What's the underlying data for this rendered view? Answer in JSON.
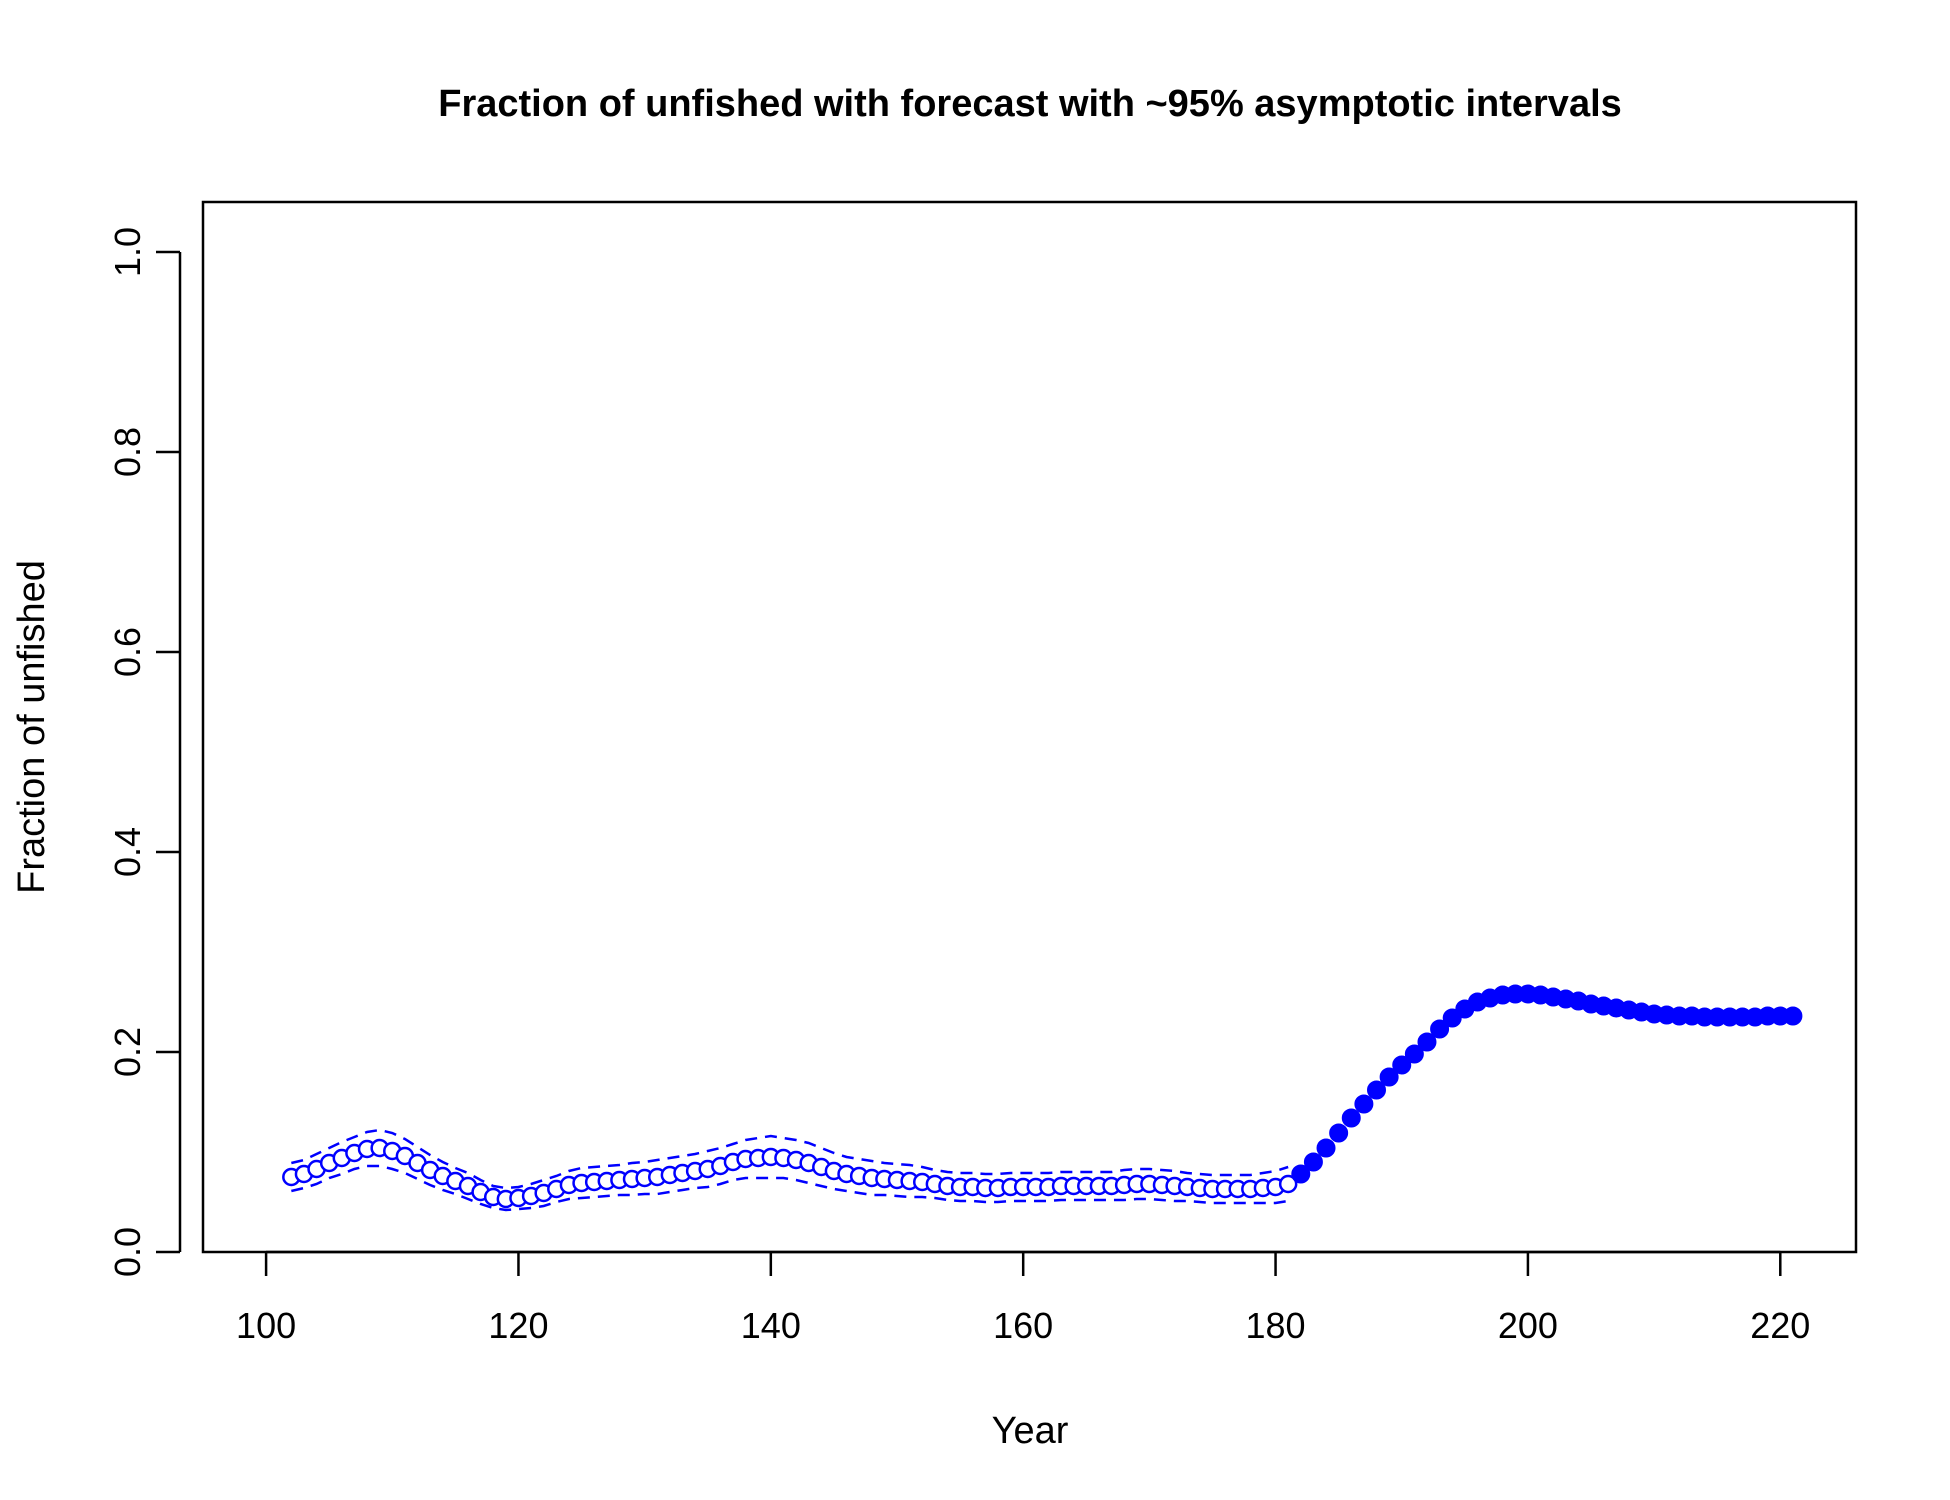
{
  "chart_data": {
    "type": "line",
    "title": "Fraction of unfished with forecast with ~95% asymptotic intervals",
    "xlabel": "Year",
    "ylabel": "Fraction of unfished",
    "xlim": [
      95,
      226
    ],
    "ylim": [
      0,
      1.05
    ],
    "x_ticks": [
      100,
      120,
      140,
      160,
      180,
      200,
      220
    ],
    "x_tick_labels": [
      "100",
      "120",
      "140",
      "160",
      "180",
      "200",
      "220"
    ],
    "y_ticks": [
      0,
      0.2,
      0.4,
      0.6,
      0.8,
      1.0
    ],
    "y_tick_labels": [
      "0.0",
      "0.2",
      "0.4",
      "0.6",
      "0.8",
      "1.0"
    ],
    "grid": false,
    "color": "#0000ff",
    "series": [
      {
        "marker": "open-circle",
        "x": [
          102,
          103,
          104,
          105,
          106,
          107,
          108,
          109,
          110,
          111,
          112,
          113,
          114,
          115,
          116,
          117,
          118,
          119,
          120,
          121,
          122,
          123,
          124,
          125,
          126,
          127,
          128,
          129,
          130,
          131,
          132,
          133,
          134,
          135,
          136,
          137,
          138,
          139,
          140,
          141,
          142,
          143,
          144,
          145,
          146,
          147,
          148,
          149,
          150,
          151,
          152,
          153,
          154,
          155,
          156,
          157,
          158,
          159,
          160,
          161,
          162,
          163,
          164,
          165,
          166,
          167,
          168,
          169,
          170,
          171,
          172,
          173,
          174,
          175,
          176,
          177,
          178,
          179,
          180,
          181
        ],
        "y": [
          0.075,
          0.078,
          0.083,
          0.089,
          0.094,
          0.099,
          0.103,
          0.104,
          0.101,
          0.096,
          0.089,
          0.082,
          0.076,
          0.071,
          0.066,
          0.06,
          0.055,
          0.053,
          0.054,
          0.056,
          0.059,
          0.063,
          0.067,
          0.069,
          0.07,
          0.071,
          0.072,
          0.073,
          0.074,
          0.075,
          0.077,
          0.079,
          0.081,
          0.083,
          0.086,
          0.09,
          0.093,
          0.094,
          0.095,
          0.094,
          0.092,
          0.089,
          0.085,
          0.081,
          0.078,
          0.076,
          0.074,
          0.073,
          0.072,
          0.071,
          0.07,
          0.068,
          0.066,
          0.065,
          0.065,
          0.064,
          0.064,
          0.065,
          0.065,
          0.065,
          0.065,
          0.066,
          0.066,
          0.066,
          0.066,
          0.066,
          0.067,
          0.068,
          0.068,
          0.067,
          0.066,
          0.065,
          0.064,
          0.063,
          0.063,
          0.063,
          0.063,
          0.064,
          0.065,
          0.068
        ]
      },
      {
        "marker": "dashed-line",
        "x": [
          102,
          103,
          104,
          105,
          106,
          107,
          108,
          109,
          110,
          111,
          112,
          113,
          114,
          115,
          116,
          117,
          118,
          119,
          120,
          121,
          122,
          123,
          124,
          125,
          126,
          127,
          128,
          129,
          130,
          131,
          132,
          133,
          134,
          135,
          136,
          137,
          138,
          139,
          140,
          141,
          142,
          143,
          144,
          145,
          146,
          147,
          148,
          149,
          150,
          151,
          152,
          153,
          154,
          155,
          156,
          157,
          158,
          159,
          160,
          161,
          162,
          163,
          164,
          165,
          166,
          167,
          168,
          169,
          170,
          171,
          172,
          173,
          174,
          175,
          176,
          177,
          178,
          179,
          180,
          181
        ],
        "y": [
          0.089,
          0.092,
          0.098,
          0.104,
          0.11,
          0.115,
          0.12,
          0.122,
          0.119,
          0.113,
          0.105,
          0.097,
          0.09,
          0.084,
          0.079,
          0.072,
          0.066,
          0.064,
          0.065,
          0.068,
          0.072,
          0.076,
          0.081,
          0.084,
          0.085,
          0.086,
          0.087,
          0.089,
          0.09,
          0.092,
          0.094,
          0.096,
          0.098,
          0.101,
          0.104,
          0.108,
          0.112,
          0.114,
          0.116,
          0.114,
          0.112,
          0.109,
          0.104,
          0.099,
          0.095,
          0.093,
          0.091,
          0.089,
          0.088,
          0.087,
          0.085,
          0.082,
          0.08,
          0.079,
          0.079,
          0.078,
          0.078,
          0.079,
          0.079,
          0.079,
          0.079,
          0.08,
          0.08,
          0.08,
          0.08,
          0.08,
          0.082,
          0.083,
          0.083,
          0.082,
          0.081,
          0.079,
          0.078,
          0.077,
          0.077,
          0.077,
          0.077,
          0.079,
          0.081,
          0.085
        ]
      },
      {
        "marker": "dashed-line",
        "x": [
          102,
          103,
          104,
          105,
          106,
          107,
          108,
          109,
          110,
          111,
          112,
          113,
          114,
          115,
          116,
          117,
          118,
          119,
          120,
          121,
          122,
          123,
          124,
          125,
          126,
          127,
          128,
          129,
          130,
          131,
          132,
          133,
          134,
          135,
          136,
          137,
          138,
          139,
          140,
          141,
          142,
          143,
          144,
          145,
          146,
          147,
          148,
          149,
          150,
          151,
          152,
          153,
          154,
          155,
          156,
          157,
          158,
          159,
          160,
          161,
          162,
          163,
          164,
          165,
          166,
          167,
          168,
          169,
          170,
          171,
          172,
          173,
          174,
          175,
          176,
          177,
          178,
          179,
          180,
          181
        ],
        "y": [
          0.061,
          0.064,
          0.068,
          0.074,
          0.078,
          0.083,
          0.086,
          0.086,
          0.083,
          0.079,
          0.073,
          0.067,
          0.062,
          0.058,
          0.053,
          0.048,
          0.044,
          0.042,
          0.043,
          0.044,
          0.046,
          0.05,
          0.053,
          0.054,
          0.055,
          0.056,
          0.057,
          0.057,
          0.058,
          0.058,
          0.06,
          0.062,
          0.064,
          0.065,
          0.068,
          0.072,
          0.074,
          0.074,
          0.074,
          0.074,
          0.072,
          0.069,
          0.066,
          0.063,
          0.061,
          0.059,
          0.057,
          0.057,
          0.056,
          0.055,
          0.055,
          0.054,
          0.052,
          0.051,
          0.051,
          0.05,
          0.05,
          0.051,
          0.051,
          0.051,
          0.051,
          0.052,
          0.052,
          0.052,
          0.052,
          0.052,
          0.052,
          0.053,
          0.053,
          0.052,
          0.051,
          0.051,
          0.05,
          0.049,
          0.049,
          0.049,
          0.049,
          0.049,
          0.049,
          0.051
        ]
      },
      {
        "marker": "filled-circle",
        "x": [
          182,
          183,
          184,
          185,
          186,
          187,
          188,
          189,
          190,
          191,
          192,
          193,
          194,
          195,
          196,
          197,
          198,
          199,
          200,
          201,
          202,
          203,
          204,
          205,
          206,
          207,
          208,
          209,
          210,
          211,
          212,
          213,
          214,
          215,
          216,
          217,
          218,
          219,
          220,
          221
        ],
        "y": [
          0.078,
          0.09,
          0.104,
          0.119,
          0.134,
          0.148,
          0.162,
          0.175,
          0.187,
          0.198,
          0.21,
          0.223,
          0.234,
          0.243,
          0.25,
          0.254,
          0.257,
          0.258,
          0.258,
          0.257,
          0.255,
          0.253,
          0.251,
          0.248,
          0.246,
          0.244,
          0.242,
          0.24,
          0.238,
          0.237,
          0.236,
          0.236,
          0.235,
          0.235,
          0.235,
          0.235,
          0.235,
          0.236,
          0.236,
          0.236
        ]
      }
    ]
  }
}
